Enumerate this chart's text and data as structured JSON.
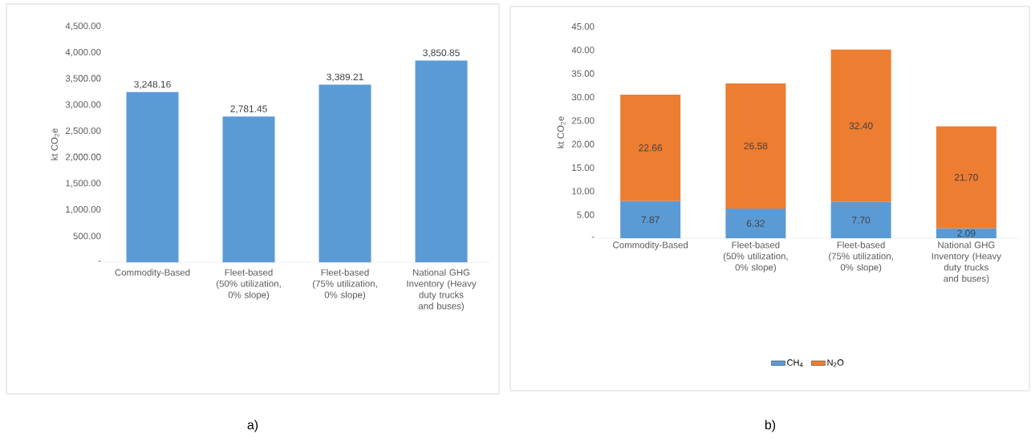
{
  "chart_data": [
    {
      "type": "bar",
      "categories": [
        "Commodity-Based",
        "Fleet-based (50% utilization, 0% slope)",
        "Fleet-based (75% utilization, 0% slope)",
        "National GHG Inventory (Heavy duty trucks and buses)"
      ],
      "values": [
        3248.16,
        2781.45,
        3389.21,
        3850.85
      ],
      "color": "#5b9bd5",
      "ylabel": "kt CO$_{2}$e",
      "ylim": [
        0,
        4500
      ],
      "yticks": [
        {
          "value": 0,
          "label": "-"
        },
        {
          "value": 500,
          "label": "500.00"
        },
        {
          "value": 1000,
          "label": "1,000.00"
        },
        {
          "value": 1500,
          "label": "1,500.00"
        },
        {
          "value": 2000,
          "label": "2,000.00"
        },
        {
          "value": 2500,
          "label": "2,500.00"
        },
        {
          "value": 3000,
          "label": "3,000.00"
        },
        {
          "value": 3500,
          "label": "3,500.00"
        },
        {
          "value": 4000,
          "label": "4,000.00"
        },
        {
          "value": 4500,
          "label": "4,500.00"
        }
      ],
      "value_labels": [
        "3,248.16",
        "2,781.45",
        "3,389.21",
        "3,850.85"
      ],
      "annotations": [
        "a)"
      ]
    },
    {
      "type": "bar",
      "stacked": true,
      "categories": [
        "Commodity-Based",
        "Fleet-based (50% utilization, 0% slope)",
        "Fleet-based (75% utilization, 0% slope)",
        "National GHG Inventory (Heavy duty trucks and buses)"
      ],
      "series": [
        {
          "name": "CH$_{4}$",
          "color": "#5b9bd5",
          "values": [
            7.87,
            6.32,
            7.7,
            2.09
          ],
          "value_labels": [
            "7.87",
            "6.32",
            "7.70",
            "2.09"
          ]
        },
        {
          "name": "N$_{2}$O",
          "color": "#ed7d31",
          "values": [
            22.66,
            26.58,
            32.4,
            21.7
          ],
          "value_labels": [
            "22.66",
            "26.58",
            "32.40",
            "21.70"
          ]
        }
      ],
      "ylabel": "kt CO$_{2}$e",
      "ylim": [
        0,
        45
      ],
      "yticks": [
        {
          "value": 0,
          "label": "-"
        },
        {
          "value": 5,
          "label": "5.00"
        },
        {
          "value": 10,
          "label": "10.00"
        },
        {
          "value": 15,
          "label": "15.00"
        },
        {
          "value": 20,
          "label": "20.00"
        },
        {
          "value": 25,
          "label": "25.00"
        },
        {
          "value": 30,
          "label": "30.00"
        },
        {
          "value": 35,
          "label": "35.00"
        },
        {
          "value": 40,
          "label": "40.00"
        },
        {
          "value": 45,
          "label": "45.00"
        }
      ],
      "legend": "bottom",
      "annotations": [
        "b)"
      ]
    }
  ]
}
